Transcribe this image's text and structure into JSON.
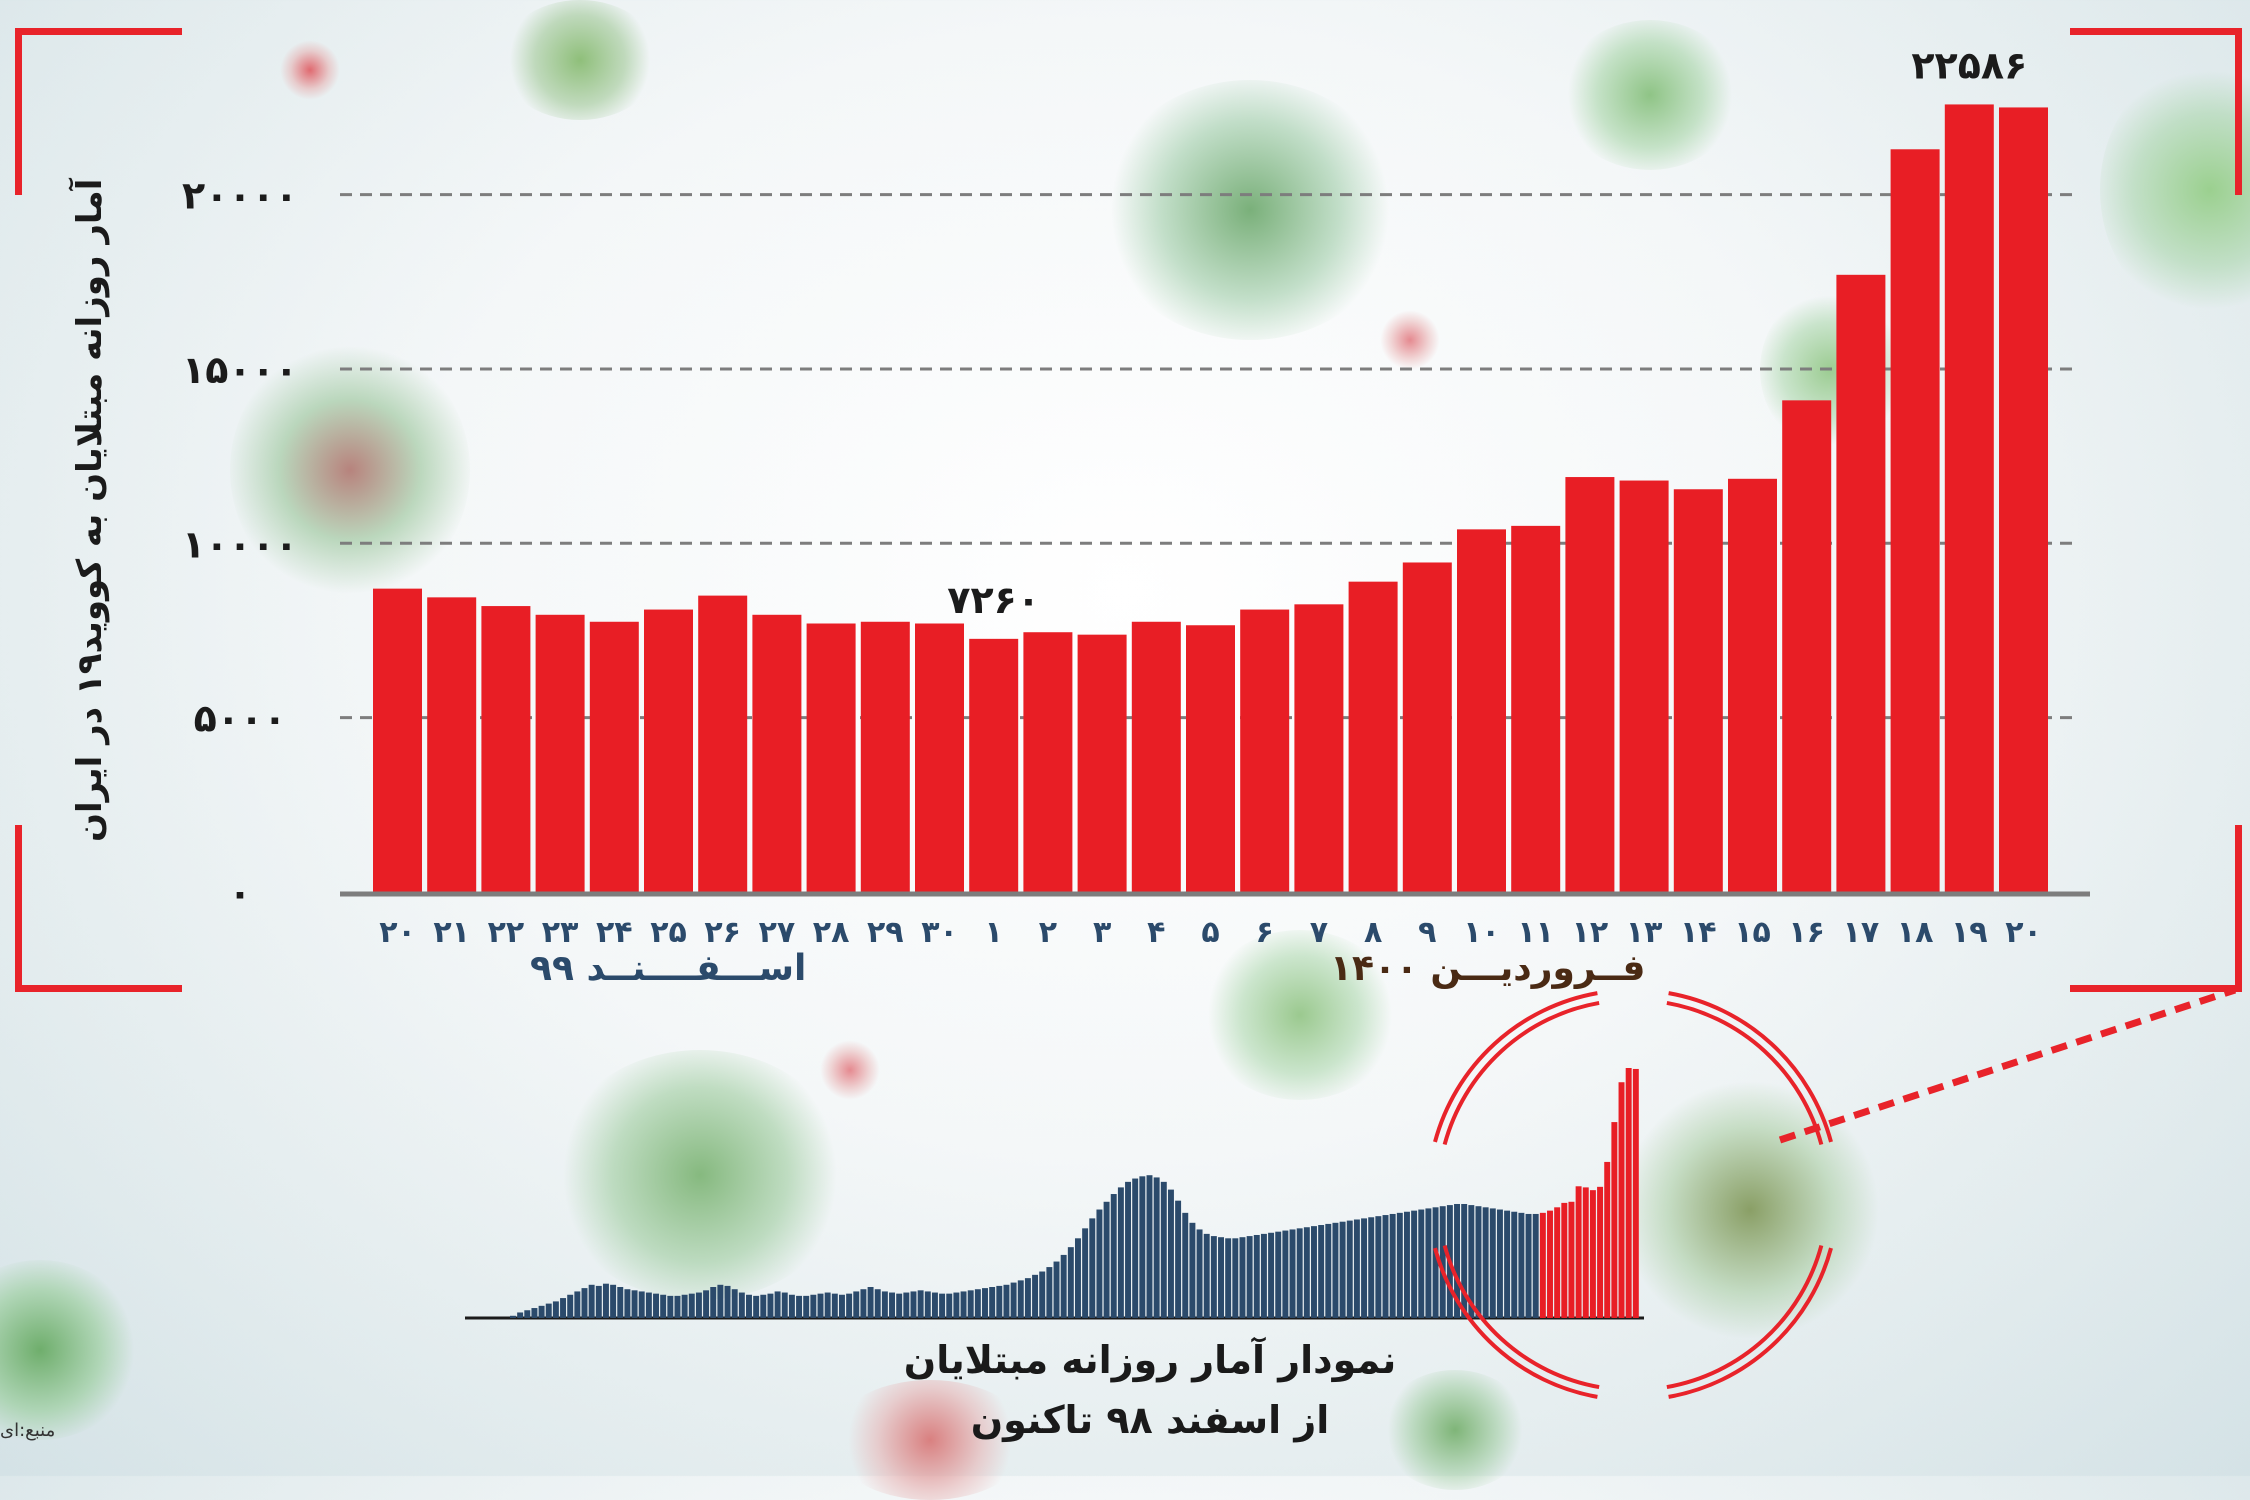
{
  "chart_data": [
    {
      "type": "bar",
      "title": "",
      "ylabel": "آمار روزانه مبتلایان به کووید۱۹ در ایران",
      "xlabel": "",
      "ylim": [
        0,
        23000
      ],
      "yticks": [
        0,
        5000,
        10000,
        15000,
        20000
      ],
      "ytick_labels": [
        "۰",
        "۵۰۰۰",
        "۱۰۰۰۰",
        "۱۵۰۰۰",
        "۲۰۰۰۰"
      ],
      "grid": true,
      "color": "#e81e25",
      "categories": [
        "۲۰",
        "۲۱",
        "۲۲",
        "۲۳",
        "۲۴",
        "۲۵",
        "۲۶",
        "۲۷",
        "۲۸",
        "۲۹",
        "۳۰",
        "۱",
        "۲",
        "۳",
        "۴",
        "۵",
        "۶",
        "۷",
        "۸",
        "۹",
        "۱۰",
        "۱۱",
        "۱۲",
        "۱۳",
        "۱۴",
        "۱۵",
        "۱۶",
        "۱۷",
        "۱۸",
        "۱۹",
        "۲۰"
      ],
      "values": [
        8700,
        8450,
        8200,
        7950,
        7750,
        8100,
        8500,
        7950,
        7700,
        7750,
        7700,
        7260,
        7450,
        7380,
        7750,
        7650,
        8100,
        8250,
        8900,
        9450,
        10400,
        10500,
        11900,
        11800,
        11550,
        11850,
        14100,
        17700,
        21300,
        22586,
        22500
      ],
      "data_labels": [
        {
          "index": 11,
          "text": "۷۲۶۰"
        },
        {
          "index": 29,
          "text": "۲۲۵۸۶"
        }
      ],
      "month_labels": [
        {
          "text": "اســـفــــنــد ۹۹",
          "color": "#2b4a6b"
        },
        {
          "text": "فــروردیـــن ۱۴۰۰",
          "color": "#4a2a14"
        }
      ]
    },
    {
      "type": "bar",
      "title": "نمودار آمار روزانه مبتلایان از اسفند ۹۸ تاکنون",
      "caption_lines": [
        "نمودار آمار روزانه مبتلایان",
        "از اسفند ۹۸ تاکنون"
      ],
      "colors": {
        "history": "#2b4a6b",
        "highlight": "#e81e25"
      },
      "values": [
        200,
        500,
        700,
        900,
        1100,
        1300,
        1500,
        1800,
        2100,
        2400,
        2700,
        3000,
        2900,
        3100,
        3000,
        2800,
        2600,
        2500,
        2400,
        2300,
        2200,
        2100,
        2000,
        2000,
        2100,
        2200,
        2300,
        2500,
        2800,
        3000,
        2900,
        2600,
        2300,
        2100,
        2000,
        2100,
        2200,
        2400,
        2300,
        2100,
        2000,
        2000,
        2100,
        2200,
        2300,
        2200,
        2100,
        2200,
        2400,
        2600,
        2800,
        2600,
        2400,
        2300,
        2200,
        2300,
        2400,
        2500,
        2400,
        2300,
        2200,
        2200,
        2300,
        2400,
        2500,
        2600,
        2700,
        2800,
        2900,
        3000,
        3200,
        3400,
        3600,
        3900,
        4200,
        4600,
        5100,
        5700,
        6400,
        7200,
        8100,
        9000,
        9800,
        10500,
        11200,
        11800,
        12300,
        12600,
        12800,
        12900,
        12700,
        12300,
        11600,
        10600,
        9500,
        8600,
        8000,
        7600,
        7400,
        7300,
        7200,
        7200,
        7300,
        7400,
        7500,
        7600,
        7700,
        7800,
        7900,
        8000,
        8100,
        8200,
        8300,
        8400,
        8500,
        8600,
        8700,
        8800,
        8900,
        9000,
        9100,
        9200,
        9300,
        9400,
        9500,
        9600,
        9700,
        9800,
        9900,
        10000,
        10100,
        10200,
        10300,
        10300,
        10200,
        10100,
        10000,
        9900,
        9800,
        9700,
        9600,
        9500,
        9400,
        9400,
        9500,
        9700,
        10000,
        10400,
        10500,
        11900,
        11800,
        11550,
        11850,
        14100,
        17700,
        21300,
        22586,
        22500
      ],
      "highlight_from_index": 144
    }
  ],
  "source_text": "منبع:ای"
}
